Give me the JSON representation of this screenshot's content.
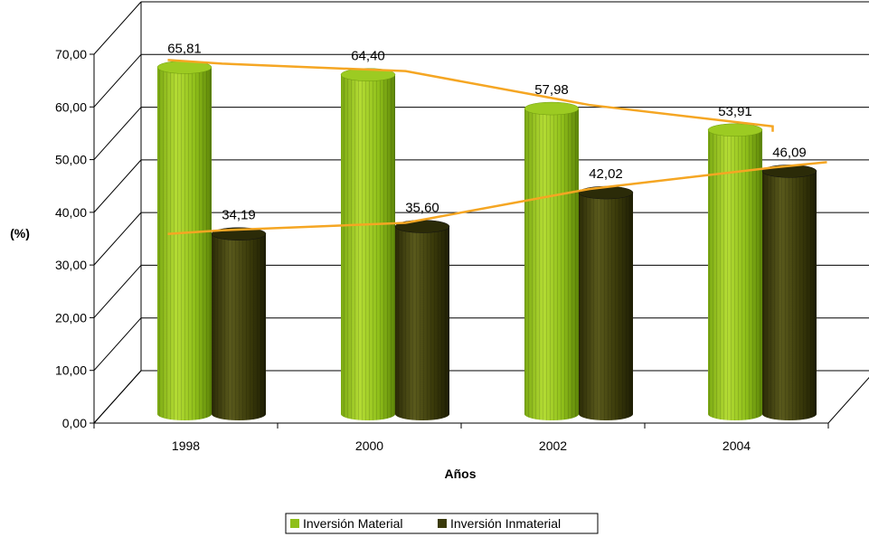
{
  "chart_data": {
    "type": "bar",
    "bar_shape": "cylinder-3d",
    "categories": [
      "1998",
      "2000",
      "2002",
      "2004"
    ],
    "series": [
      {
        "name": "Inversión Material",
        "values": [
          65.81,
          64.4,
          57.98,
          53.91
        ],
        "labels": [
          "65,81",
          "64,40",
          "57,98",
          "53,91"
        ],
        "color": "#8fbf1a"
      },
      {
        "name": "Inversión Inmaterial",
        "values": [
          34.19,
          35.6,
          42.02,
          46.09
        ],
        "labels": [
          "34,19",
          "35,60",
          "42,02",
          "46,09"
        ],
        "color": "#3a3a0a"
      }
    ],
    "trendlines": [
      {
        "series": "Inversión Material",
        "color": "#f5a623"
      },
      {
        "series": "Inversión Inmaterial",
        "color": "#f5a623"
      }
    ],
    "xlabel": "Años",
    "ylabel": "(%)",
    "ylim": [
      0,
      70
    ],
    "yticks": [
      "0,00",
      "10,00",
      "20,00",
      "30,00",
      "40,00",
      "50,00",
      "60,00",
      "70,00"
    ],
    "grid": true,
    "legend": "bottom"
  }
}
